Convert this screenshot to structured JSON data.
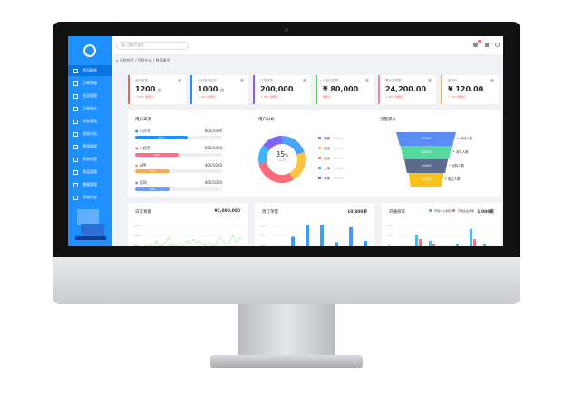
{
  "sidebar": {
    "items": [
      "首页概览",
      "订单管理",
      "会员管理",
      "订单统计",
      "财务管理",
      "报表分析",
      "营销管理",
      "系统设置",
      "商品管理",
      "数据管理",
      "系统日志"
    ],
    "active": 0
  },
  "header": {
    "search_placeholder": "输入搜索关键词",
    "badge": "6"
  },
  "breadcrumb": [
    "系统首页",
    "/ 信息中心",
    "/ 数据概览"
  ],
  "cards": [
    {
      "title": "用户总数",
      "value": "1200",
      "unit": "位",
      "sub": "↑ 10% 较昨日",
      "color": "#ff5b5b"
    },
    {
      "title": "今日新增用户",
      "value": "1000",
      "unit": "位",
      "sub": "↑ 10% 较昨日",
      "color": "#1e90ff"
    },
    {
      "title": "订单总数",
      "value": "200,000",
      "unit": "",
      "sub": "↑ 10% 较昨日",
      "color": "#8b5cf6"
    },
    {
      "title": "今日交易额",
      "value": "¥ 80,000",
      "unit": "",
      "sub": "较昨日",
      "color": "#5ad46a"
    },
    {
      "title": "累计交易额",
      "value": "24,200.00",
      "unit": "",
      "sub": "↓ 20% 较昨日",
      "color": "#ff7c9c"
    },
    {
      "title": "客单价",
      "value": "¥ 120.00",
      "unit": "",
      "sub": "↑ 10% 较昨日",
      "color": "#f7a84a"
    }
  ],
  "user_source": {
    "title": "用户来源",
    "rows": [
      {
        "label": "公众号",
        "value": "600/1000",
        "pct": 60,
        "color": "#1e90ff"
      },
      {
        "label": "小程序",
        "value": "500/1000",
        "pct": 50,
        "color": "#ff6b81"
      },
      {
        "label": "APP",
        "value": "400/1000",
        "pct": 40,
        "color": "#ffab4a"
      },
      {
        "label": "官网",
        "value": "400/1000",
        "pct": 40,
        "color": "#6c9cff"
      }
    ]
  },
  "user_dist": {
    "title": "用户分析",
    "center_value": "35",
    "center_unit": "%",
    "center_sub": "3120",
    "legend": [
      {
        "label": "成都",
        "value": "10000",
        "color": "#4aa3ff",
        "share": 20
      },
      {
        "label": "武汉",
        "value": "10000",
        "color": "#ffc23e",
        "share": 22
      },
      {
        "label": "北京",
        "value": "10000",
        "color": "#ff6b7a",
        "share": 30
      },
      {
        "label": "上海",
        "value": "10000",
        "color": "#38b6ff",
        "share": 13
      },
      {
        "label": "其他",
        "value": "10000",
        "color": "#7c66f5",
        "share": 15
      }
    ]
  },
  "funnel": {
    "title": "流量漏斗",
    "stages": [
      {
        "value": "20000",
        "label": "访问人数",
        "color": "#5b8cf5"
      },
      {
        "value": "20000",
        "label": "浏览人数",
        "color": "#56d9a0"
      },
      {
        "value": "20000",
        "label": "加购人数",
        "color": "#5a6b8c"
      },
      {
        "value": "14000",
        "label": "成交人数",
        "color": "#f7c21a"
      }
    ]
  },
  "daily": {
    "title": "日交易额",
    "total": "¥3,000,000",
    "yticks": [
      "1500",
      "1000",
      "500"
    ],
    "values": [
      6,
      5,
      7,
      4,
      9,
      5,
      6,
      8,
      11,
      6,
      7,
      5,
      8,
      6,
      9,
      7,
      10,
      8,
      9,
      7,
      6,
      8,
      7,
      5,
      9,
      11,
      8,
      7,
      9,
      12,
      8,
      10,
      11
    ]
  },
  "weekly": {
    "title": "周订单量",
    "total": "10,300单",
    "yticks": [
      "300",
      "200",
      "100"
    ],
    "values": [
      35,
      75,
      120,
      120,
      55,
      110,
      60
    ]
  },
  "new_members": {
    "title": "开通商家",
    "total": "1,000家",
    "legend": [
      "开通个人商家",
      "开通企业商家"
    ],
    "yticks": [
      "150",
      "100",
      "50"
    ],
    "a": [
      0,
      75,
      55,
      10,
      45,
      95,
      45
    ],
    "b": [
      28,
      60,
      45,
      30,
      30,
      60,
      15
    ]
  }
}
